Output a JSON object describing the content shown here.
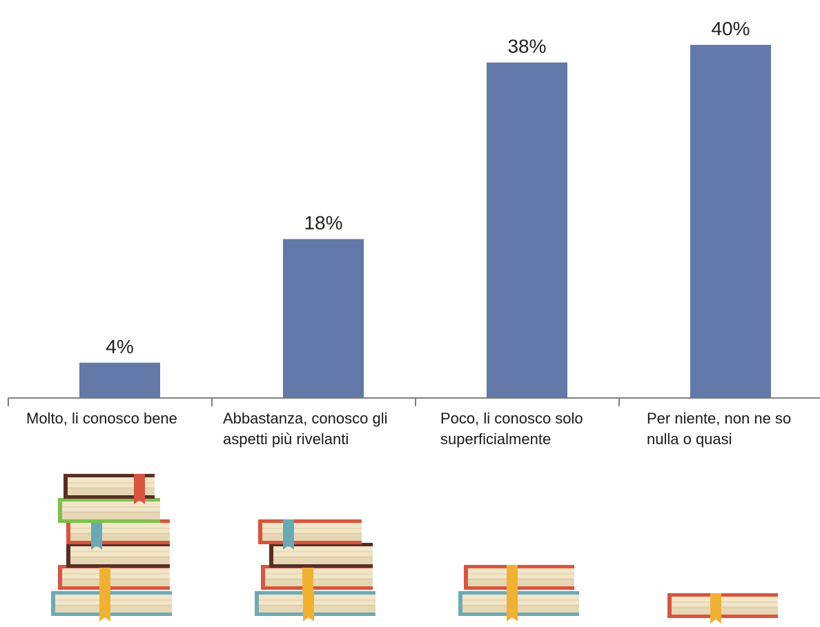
{
  "chart_data": {
    "type": "bar",
    "categories": [
      "Molto, li conosco bene",
      "Abbastanza, conosco gli aspetti più rivelanti",
      "Poco, li conosco solo superficialmente",
      "Per niente, non ne so nulla o quasi"
    ],
    "category_lines": [
      [
        "Molto, li conosco bene"
      ],
      [
        "Abbastanza, conosco gli",
        "aspetti più rivelanti"
      ],
      [
        "Poco, li conosco solo",
        "superficialmente"
      ],
      [
        "Per niente, non ne so",
        "nulla o quasi"
      ]
    ],
    "values": [
      4,
      18,
      38,
      40
    ],
    "value_labels": [
      "4%",
      "18%",
      "38%",
      "40%"
    ],
    "title": "",
    "xlabel": "",
    "ylabel": "",
    "ylim": [
      0,
      40
    ],
    "grid": false,
    "bar_color": "#6379aa",
    "axis_color": "#7f7f7f",
    "book_stacks": [
      6,
      4,
      2,
      1
    ]
  }
}
